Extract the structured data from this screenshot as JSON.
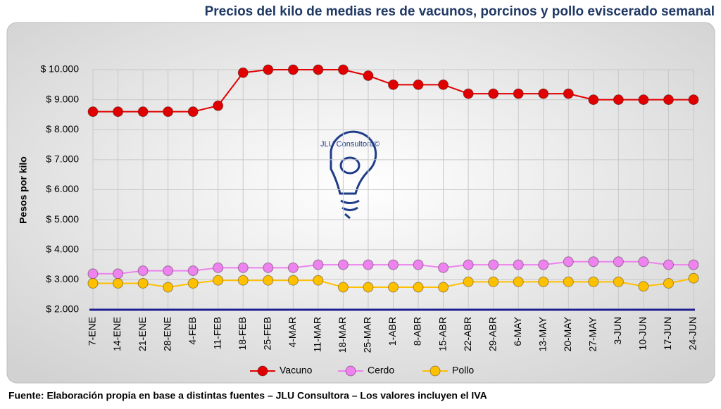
{
  "chart_data": {
    "type": "line",
    "title": "Precios del kilo de medias res de vacunos, porcinos y pollo eviscerado semanal",
    "y_label": "Pesos por kilo",
    "source": "Fuente: Elaboración propia en base a distintas fuentes – JLU Consultora – Los valores incluyen el IVA",
    "watermark": "JLU Consultora©",
    "categories": [
      "7-ENE",
      "14-ENE",
      "21-ENE",
      "28-ENE",
      "4-FEB",
      "11-FEB",
      "18-FEB",
      "25-FEB",
      "4-MAR",
      "11-MAR",
      "18-MAR",
      "25-MAR",
      "1-ABR",
      "8-ABR",
      "15-ABR",
      "22-ABR",
      "29-ABR",
      "6-MAY",
      "13-MAY",
      "20-MAY",
      "27-MAY",
      "3-JUN",
      "10-JUN",
      "17-JUN",
      "24-JUN"
    ],
    "series": [
      {
        "name": "Vacuno",
        "color": "#e00000",
        "values": [
          8600,
          8600,
          8600,
          8600,
          8600,
          8800,
          9900,
          10000,
          10000,
          10000,
          10000,
          9800,
          9500,
          9500,
          9500,
          9200,
          9200,
          9200,
          9200,
          9200,
          9000,
          9000,
          9000,
          9000,
          9000
        ]
      },
      {
        "name": "Cerdo",
        "color": "#ee82ee",
        "values": [
          3200,
          3200,
          3300,
          3300,
          3300,
          3400,
          3400,
          3400,
          3400,
          3500,
          3500,
          3500,
          3500,
          3500,
          3400,
          3500,
          3500,
          3500,
          3500,
          3600,
          3600,
          3600,
          3600,
          3500,
          3500
        ]
      },
      {
        "name": "Pollo",
        "color": "#ffc000",
        "values": [
          2880,
          2880,
          2880,
          2750,
          2880,
          2980,
          2980,
          2980,
          2980,
          2980,
          2750,
          2750,
          2750,
          2750,
          2750,
          2930,
          2930,
          2930,
          2930,
          2930,
          2930,
          2930,
          2780,
          2880,
          3050
        ]
      }
    ],
    "ylim": [
      2000,
      10000
    ],
    "yticks": [
      {
        "value": 2000,
        "label": "$ 2.000"
      },
      {
        "value": 3000,
        "label": "$ 3.000"
      },
      {
        "value": 4000,
        "label": "$ 4.000"
      },
      {
        "value": 5000,
        "label": "$ 5.000"
      },
      {
        "value": 6000,
        "label": "$ 6.000"
      },
      {
        "value": 7000,
        "label": "$ 7.000"
      },
      {
        "value": 8000,
        "label": "$ 8.000"
      },
      {
        "value": 9000,
        "label": "$ 9.000"
      },
      {
        "value": 10000,
        "label": "$ 10.000"
      }
    ],
    "grid": true,
    "legend": "bottom"
  }
}
